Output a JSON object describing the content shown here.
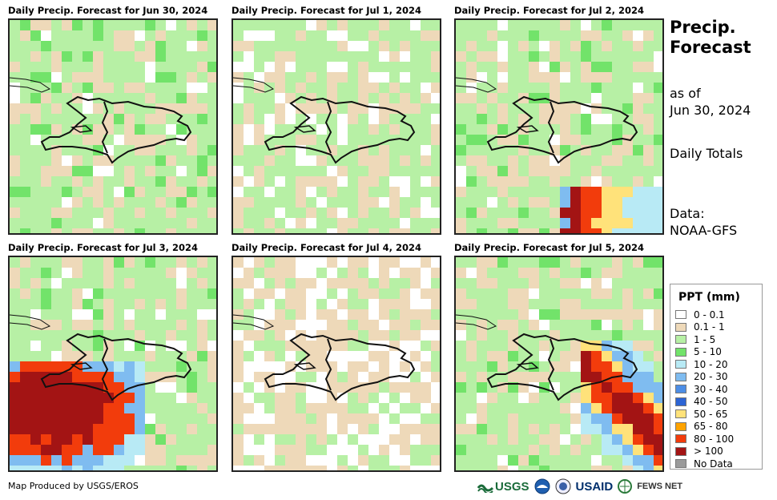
{
  "panels": [
    {
      "title": "Daily Precip. Forecast for Jun 30, 2024",
      "seed": 11,
      "heavy": []
    },
    {
      "title": "Daily Precip. Forecast for Jul 1, 2024",
      "seed": 23,
      "heavy": []
    },
    {
      "title": "Daily Precip. Forecast for Jul 2, 2024",
      "seed": 37,
      "heavy": [
        "se-band"
      ]
    },
    {
      "title": "Daily Precip. Forecast for Jul 3, 2024",
      "seed": 41,
      "heavy": [
        "sw-blob"
      ]
    },
    {
      "title": "Daily Precip. Forecast for Jul 4, 2024",
      "seed": 53,
      "heavy": []
    },
    {
      "title": "Daily Precip. Forecast for Jul 5, 2024",
      "seed": 67,
      "heavy": [
        "se-diag"
      ]
    }
  ],
  "side": {
    "title_line1": "Precip.",
    "title_line2": "Forecast",
    "asof_line1": "as of",
    "asof_line2": "Jun 30, 2024",
    "totals": "Daily Totals",
    "data_line1": "Data:",
    "data_line2": "NOAA-GFS"
  },
  "legend": {
    "title": "PPT (mm)",
    "items": [
      {
        "label": "0 - 0.1",
        "color": "#ffffff"
      },
      {
        "label": "0.1 - 1",
        "color": "#eed9b9"
      },
      {
        "label": "1 - 5",
        "color": "#b7f0a5"
      },
      {
        "label": "5 - 10",
        "color": "#72e36a"
      },
      {
        "label": "10 - 20",
        "color": "#b8eaf5"
      },
      {
        "label": "20 - 30",
        "color": "#7fbcf0"
      },
      {
        "label": "30 - 40",
        "color": "#4d8ee6"
      },
      {
        "label": "40 - 50",
        "color": "#2c64d4"
      },
      {
        "label": "50 - 65",
        "color": "#ffe27a"
      },
      {
        "label": "65 - 80",
        "color": "#ffa300"
      },
      {
        "label": "80 - 100",
        "color": "#f23c0c"
      },
      {
        "label": "> 100",
        "color": "#a31414"
      },
      {
        "label": "No Data",
        "color": "#9a9a9a"
      }
    ]
  },
  "credit": "Map Produced by USGS/EROS",
  "logos": {
    "usgs": "USGS",
    "usaid": "USAID",
    "fewsnet": "FEWS NET"
  }
}
